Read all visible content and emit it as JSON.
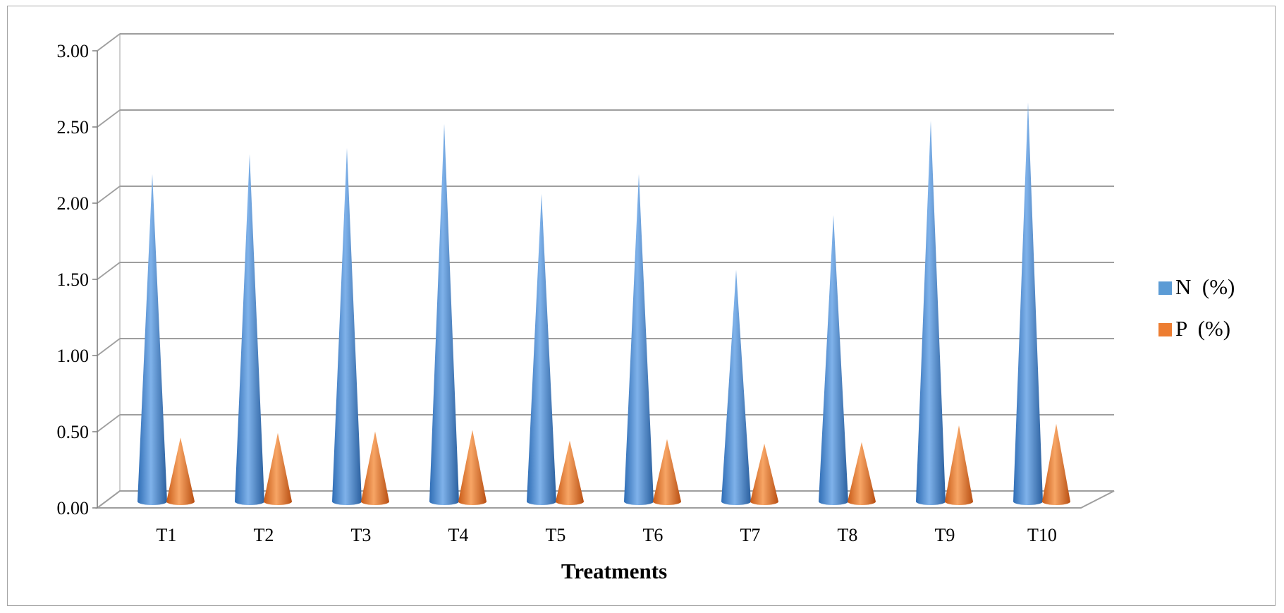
{
  "chart_data": {
    "type": "bar",
    "style": "3d-cone",
    "title": "",
    "xlabel": "Treatments",
    "ylabel": "",
    "ylim": [
      0,
      3
    ],
    "yticks": [
      "0.00",
      "0.50",
      "1.00",
      "1.50",
      "2.00",
      "2.50",
      "3.00"
    ],
    "grid": true,
    "legend_position": "right",
    "categories": [
      "T1",
      "T2",
      "T3",
      "T4",
      "T5",
      "T6",
      "T7",
      "T8",
      "T9",
      "T10"
    ],
    "series": [
      {
        "name": "N  (%)",
        "color": "#4f8fd6",
        "values": [
          2.15,
          2.28,
          2.32,
          2.48,
          2.02,
          2.15,
          1.52,
          1.88,
          2.5,
          2.62
        ]
      },
      {
        "name": "P  (%)",
        "color": "#ed7d31",
        "values": [
          0.42,
          0.45,
          0.46,
          0.47,
          0.4,
          0.41,
          0.38,
          0.39,
          0.5,
          0.51
        ]
      }
    ]
  }
}
